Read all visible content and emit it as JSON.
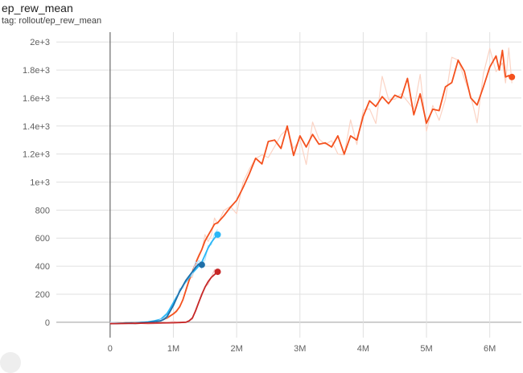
{
  "card": {
    "title": "ep_rew_mean",
    "tag": "tag: rollout/ep_rew_mean"
  },
  "chart_data": {
    "type": "line",
    "title": "ep_rew_mean",
    "xlabel": "",
    "ylabel": "",
    "xlim": [
      -850000,
      6500000
    ],
    "ylim": [
      -110,
      2070
    ],
    "grid": true,
    "x_ticks": [
      0,
      1000000,
      2000000,
      3000000,
      4000000,
      5000000,
      6000000
    ],
    "x_tick_labels": [
      "0",
      "1M",
      "2M",
      "3M",
      "4M",
      "5M",
      "6M"
    ],
    "y_ticks": [
      0,
      200,
      400,
      600,
      800,
      1000,
      1200,
      1400,
      1600,
      1800,
      2000
    ],
    "y_tick_labels": [
      "0",
      "200",
      "400",
      "600",
      "800",
      "1e+3",
      "1.2e+3",
      "1.4e+3",
      "1.6e+3",
      "1.8e+3",
      "2e+3"
    ],
    "series": [
      {
        "color": "#f4511e",
        "raw_color": "#fbd3c4",
        "x": [
          0,
          200000,
          400000,
          600000,
          700000,
          800000,
          900000,
          1000000,
          1050000,
          1100000,
          1150000,
          1200000,
          1250000,
          1300000,
          1350000,
          1400000,
          1450000,
          1500000,
          1550000,
          1600000,
          1650000,
          1700000,
          1800000,
          1900000,
          2000000,
          2100000,
          2200000,
          2300000,
          2400000,
          2500000,
          2600000,
          2700000,
          2800000,
          2900000,
          3000000,
          3100000,
          3200000,
          3300000,
          3400000,
          3500000,
          3600000,
          3700000,
          3800000,
          3900000,
          4000000,
          4100000,
          4200000,
          4300000,
          4400000,
          4500000,
          4600000,
          4700000,
          4800000,
          4900000,
          5000000,
          5100000,
          5200000,
          5300000,
          5400000,
          5500000,
          5600000,
          5700000,
          5800000,
          5900000,
          6000000,
          6100000,
          6150000,
          6200000,
          6250000,
          6300000,
          6350000
        ],
        "y": [
          -10,
          -8,
          -5,
          0,
          5,
          15,
          30,
          60,
          80,
          110,
          160,
          230,
          300,
          360,
          420,
          470,
          520,
          580,
          620,
          660,
          700,
          710,
          760,
          820,
          870,
          960,
          1060,
          1170,
          1130,
          1290,
          1300,
          1240,
          1400,
          1190,
          1330,
          1250,
          1340,
          1270,
          1280,
          1250,
          1330,
          1200,
          1330,
          1300,
          1470,
          1580,
          1540,
          1610,
          1560,
          1620,
          1600,
          1740,
          1480,
          1630,
          1420,
          1520,
          1510,
          1680,
          1710,
          1870,
          1790,
          1600,
          1550,
          1680,
          1820,
          1900,
          1800,
          1940,
          1750,
          1760,
          1750
        ],
        "end_value": 1750
      },
      {
        "color": "#29b6f6",
        "raw_color": "#b3e5fc",
        "x": [
          0,
          200000,
          400000,
          600000,
          700000,
          800000,
          900000,
          1000000,
          1100000,
          1200000,
          1300000,
          1400000,
          1450000,
          1500000,
          1550000,
          1600000,
          1650000,
          1700000
        ],
        "y": [
          -10,
          -8,
          -5,
          2,
          10,
          20,
          60,
          140,
          220,
          290,
          350,
          400,
          430,
          480,
          530,
          570,
          600,
          625
        ],
        "end_value": 625
      },
      {
        "color": "#1e6fa8",
        "raw_color": "#bbdefb",
        "x": [
          0,
          200000,
          400000,
          600000,
          700000,
          800000,
          850000,
          900000,
          950000,
          1000000,
          1050000,
          1100000,
          1150000,
          1200000,
          1250000,
          1300000,
          1350000,
          1400000,
          1450000
        ],
        "y": [
          -10,
          -8,
          -5,
          0,
          5,
          10,
          20,
          40,
          80,
          120,
          170,
          220,
          260,
          300,
          330,
          360,
          390,
          415,
          410
        ],
        "end_value": 410
      },
      {
        "color": "#c62828",
        "raw_color": "#f5c6c6",
        "x": [
          0,
          200000,
          400000,
          600000,
          800000,
          1000000,
          1100000,
          1200000,
          1250000,
          1300000,
          1350000,
          1400000,
          1450000,
          1500000,
          1550000,
          1600000,
          1650000,
          1700000
        ],
        "y": [
          -10,
          -9,
          -8,
          -6,
          -5,
          -4,
          -2,
          0,
          10,
          30,
          80,
          140,
          200,
          250,
          290,
          320,
          340,
          360
        ],
        "end_value": 360
      }
    ]
  }
}
